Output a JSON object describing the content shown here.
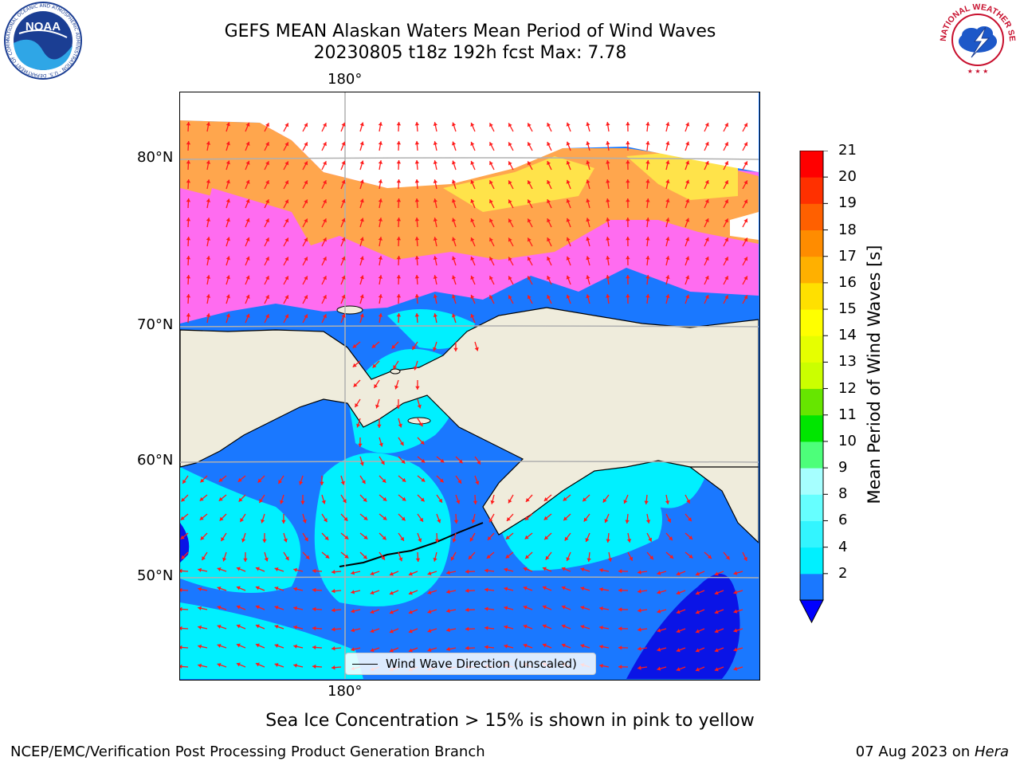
{
  "title": {
    "line1": "GEFS MEAN Alaskan Waters Mean Period of Wind Waves",
    "line2": "20230805 t18z 192h fcst   Max: 7.78"
  },
  "logos": {
    "left": {
      "name": "noaa-logo",
      "text": "NOAA",
      "ring": "NATIONAL OCEANIC AND ATMOSPHERIC ADMINISTRATION · U.S. DEPARTMENT OF COMMERCE"
    },
    "right": {
      "name": "nws-logo",
      "ring": "NATIONAL WEATHER SERVICE"
    }
  },
  "map": {
    "lon_labels": {
      "top": "180°",
      "bottom": "180°"
    },
    "lat_labels": [
      "80°N",
      "70°N",
      "60°N",
      "50°N"
    ],
    "legend": "Wind Wave Direction (unscaled)",
    "colors": {
      "land": "#efecdc",
      "ice_pink": "#ff6cf0",
      "ice_orange": "#ffa64d",
      "ice_yellow": "#ffe34a",
      "water_blue": "#1a78ff",
      "water_cyan": "#00f0ff",
      "water_deep": "#0a14e6",
      "arrow": "#ff1a1a"
    }
  },
  "colorbar": {
    "label": "Mean Period of Wind Waves [s]",
    "ticks": [
      "21",
      "20",
      "19",
      "18",
      "17",
      "16",
      "15",
      "14",
      "13",
      "12",
      "11",
      "10",
      "9",
      "8",
      "6",
      "4",
      "2"
    ],
    "levels": [
      {
        "from": 2,
        "to": 4,
        "color": "#1a78ff"
      },
      {
        "from": 4,
        "to": 6,
        "color": "#00f0ff"
      },
      {
        "from": 6,
        "to": 7,
        "color": "#33f5ff"
      },
      {
        "from": 7,
        "to": 8,
        "color": "#66ffff"
      },
      {
        "from": 8,
        "to": 9,
        "color": "#a6ffff"
      },
      {
        "from": 9,
        "to": 10,
        "color": "#4dff7a"
      },
      {
        "from": 10,
        "to": 11,
        "color": "#00e600"
      },
      {
        "from": 11,
        "to": 12,
        "color": "#66e600"
      },
      {
        "from": 12,
        "to": 13,
        "color": "#cbff00"
      },
      {
        "from": 13,
        "to": 14,
        "color": "#e6ff00"
      },
      {
        "from": 14,
        "to": 15,
        "color": "#ffff00"
      },
      {
        "from": 15,
        "to": 16,
        "color": "#ffe000"
      },
      {
        "from": 16,
        "to": 17,
        "color": "#ffb000"
      },
      {
        "from": 17,
        "to": 18,
        "color": "#ff8c00"
      },
      {
        "from": 18,
        "to": 19,
        "color": "#ff6000"
      },
      {
        "from": 19,
        "to": 20,
        "color": "#ff3000"
      },
      {
        "from": 20,
        "to": 21,
        "color": "#ff0000"
      }
    ],
    "under_color": "#0000ff"
  },
  "notes": {
    "ice": "Sea Ice Concentration > 15% is shown in pink to yellow"
  },
  "footer": {
    "left": "NCEP/EMC/Verification Post Processing Product Generation Branch",
    "date": "07 Aug 2023 on ",
    "machine": "Hera"
  }
}
